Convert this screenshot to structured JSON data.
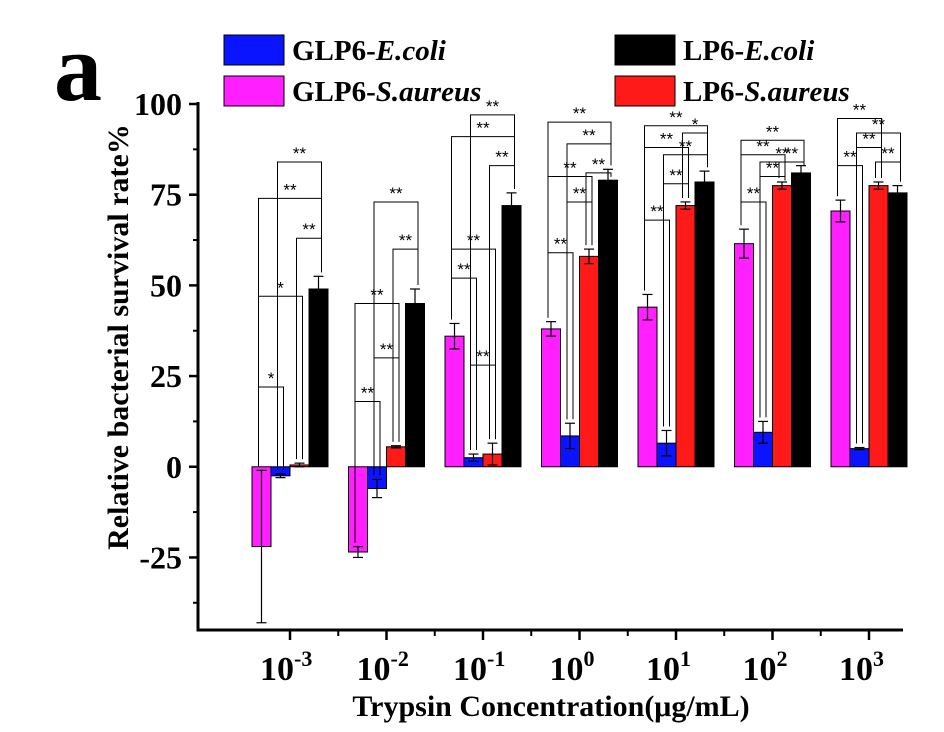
{
  "panel_label": "a",
  "chart_data": {
    "type": "bar",
    "title": "",
    "xlabel": "Trypsin Concentration(μg/mL)",
    "ylabel": "Relative bacterial survival rate%",
    "ylim": [
      -45,
      100
    ],
    "yticks": [
      "-25",
      "0",
      "25",
      "50",
      "75",
      "100"
    ],
    "ytick_values": [
      -25,
      0,
      25,
      50,
      75,
      100
    ],
    "categories": [
      {
        "base": "10",
        "exp": "-3"
      },
      {
        "base": "10",
        "exp": "-2"
      },
      {
        "base": "10",
        "exp": "-1"
      },
      {
        "base": "10",
        "exp": "0"
      },
      {
        "base": "10",
        "exp": "1"
      },
      {
        "base": "10",
        "exp": "2"
      },
      {
        "base": "10",
        "exp": "3"
      }
    ],
    "series": [
      {
        "prefix": "GLP6-",
        "italic": "S.aureus",
        "color": "#ff1fff",
        "values": [
          -22,
          -23.5,
          36,
          38,
          44,
          61.5,
          70.5
        ],
        "errors": [
          21,
          1.5,
          3.5,
          2,
          3.5,
          4,
          3
        ]
      },
      {
        "prefix": "GLP6-",
        "italic": "E.coli",
        "color": "#0a14ff",
        "values": [
          -2.5,
          -6,
          2.5,
          8.5,
          6.5,
          9.5,
          5
        ],
        "errors": [
          0.5,
          2.5,
          1,
          3.5,
          3.5,
          3,
          0.3
        ]
      },
      {
        "prefix": "LP6-",
        "italic": "S.aureus",
        "color": "#ff1a1a",
        "values": [
          0.5,
          5.5,
          3.5,
          58,
          72,
          77.5,
          77.5
        ],
        "errors": [
          0.5,
          0.3,
          3,
          2,
          1,
          1,
          1
        ]
      },
      {
        "prefix": "LP6-",
        "italic": "E.coli",
        "color": "#000000",
        "values": [
          49,
          45,
          72,
          79,
          78.5,
          81,
          75.5
        ],
        "errors": [
          3.5,
          4,
          3.5,
          3,
          3,
          2,
          2
        ]
      }
    ],
    "legend_order": [
      1,
      3,
      0,
      2
    ],
    "legend_placement": "top",
    "significance": [
      [
        {
          "a": 0,
          "b": 1,
          "y": 22,
          "label": "*"
        },
        {
          "a": 0,
          "b": 2,
          "y": 47,
          "label": "*"
        },
        {
          "a": 0,
          "b": 3,
          "y": 74,
          "label": "**"
        },
        {
          "a": 1,
          "b": 3,
          "y": 84,
          "label": "**"
        },
        {
          "a": 2,
          "b": 3,
          "y": 63,
          "label": "**"
        }
      ],
      [
        {
          "a": 0,
          "b": 1,
          "y": 18,
          "label": "**"
        },
        {
          "a": 0,
          "b": 2,
          "y": 45,
          "label": "**"
        },
        {
          "a": 1,
          "b": 2,
          "y": 30,
          "label": "**"
        },
        {
          "a": 1,
          "b": 3,
          "y": 73,
          "label": "**"
        },
        {
          "a": 2,
          "b": 3,
          "y": 60,
          "label": "**"
        }
      ],
      [
        {
          "a": 0,
          "b": 1,
          "y": 52,
          "label": "**"
        },
        {
          "a": 0,
          "b": 2,
          "y": 60,
          "label": "**"
        },
        {
          "a": 0,
          "b": 3,
          "y": 91,
          "label": "**"
        },
        {
          "a": 1,
          "b": 2,
          "y": 28,
          "label": "**"
        },
        {
          "a": 1,
          "b": 3,
          "y": 97,
          "label": "**"
        },
        {
          "a": 2,
          "b": 3,
          "y": 83,
          "label": "**"
        }
      ],
      [
        {
          "a": 0,
          "b": 1,
          "y": 59,
          "label": "**"
        },
        {
          "a": 0,
          "b": 2,
          "y": 80,
          "label": "**"
        },
        {
          "a": 0,
          "b": 3,
          "y": 95,
          "label": "**"
        },
        {
          "a": 1,
          "b": 2,
          "y": 73,
          "label": "**"
        },
        {
          "a": 1,
          "b": 3,
          "y": 89,
          "label": "**"
        },
        {
          "a": 2,
          "b": 3,
          "y": 81,
          "label": "**"
        }
      ],
      [
        {
          "a": 0,
          "b": 1,
          "y": 68,
          "label": "**"
        },
        {
          "a": 0,
          "b": 2,
          "y": 88,
          "label": "**"
        },
        {
          "a": 0,
          "b": 3,
          "y": 94,
          "label": "**"
        },
        {
          "a": 1,
          "b": 2,
          "y": 78,
          "label": "**"
        },
        {
          "a": 1,
          "b": 3,
          "y": 86,
          "label": "**"
        },
        {
          "a": 2,
          "b": 3,
          "y": 92,
          "label": "*"
        }
      ],
      [
        {
          "a": 0,
          "b": 1,
          "y": 73,
          "label": "**"
        },
        {
          "a": 0,
          "b": 2,
          "y": 86,
          "label": "**"
        },
        {
          "a": 0,
          "b": 3,
          "y": 90,
          "label": "**"
        },
        {
          "a": 1,
          "b": 2,
          "y": 80,
          "label": "**"
        },
        {
          "a": 1,
          "b": 3,
          "y": 84,
          "label": "**"
        },
        {
          "a": 2,
          "b": 3,
          "y": 84,
          "label": "**"
        }
      ],
      [
        {
          "a": 0,
          "b": 1,
          "y": 83,
          "label": "**"
        },
        {
          "a": 0,
          "b": 2,
          "y": 96,
          "label": "**"
        },
        {
          "a": 1,
          "b": 2,
          "y": 88,
          "label": "**"
        },
        {
          "a": 1,
          "b": 3,
          "y": 92,
          "label": "**"
        },
        {
          "a": 2,
          "b": 3,
          "y": 84,
          "label": "**"
        }
      ]
    ]
  }
}
